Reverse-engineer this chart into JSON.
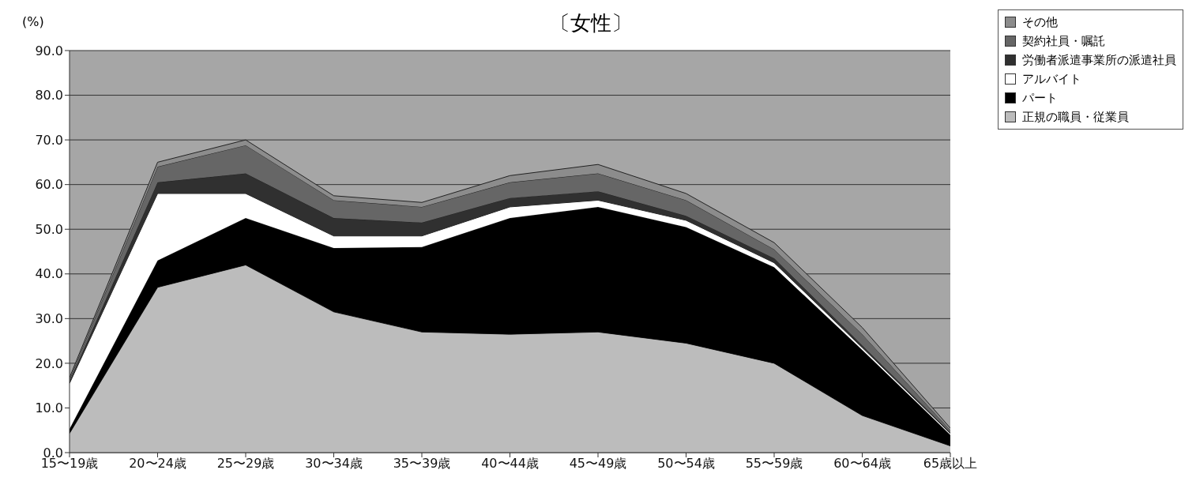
{
  "chart_data": {
    "type": "area",
    "stacked": true,
    "title": "〔女性〕",
    "ylabel": "(%)",
    "categories": [
      "15〜19歳",
      "20〜24歳",
      "25〜29歳",
      "30〜34歳",
      "35〜39歳",
      "40〜44歳",
      "45〜49歳",
      "50〜54歳",
      "55〜59歳",
      "60〜64歳",
      "65歳以上"
    ],
    "series": [
      {
        "name": "正規の職員・従業員",
        "color": "#bcbcbc",
        "values": [
          4.3,
          37,
          42,
          31.5,
          27,
          26.5,
          27,
          24.5,
          20,
          8.3,
          1.5
        ]
      },
      {
        "name": "パート",
        "color": "#000000",
        "values": [
          1.0,
          6,
          10.5,
          14.3,
          19,
          26,
          28,
          26,
          21.5,
          14.7,
          2.5
        ]
      },
      {
        "name": "アルバイト",
        "color": "#ffffff",
        "values": [
          10.2,
          15,
          5.5,
          2.7,
          2.5,
          2.5,
          1.5,
          1.5,
          1,
          0.5,
          0.3
        ]
      },
      {
        "name": "労働者派遣事業所の派遣社員",
        "color": "#303030",
        "values": [
          0.4,
          2.5,
          4.5,
          4,
          3,
          2,
          2,
          1,
          1,
          0.5,
          0.2
        ]
      },
      {
        "name": "契約社員・嘱託",
        "color": "#666666",
        "values": [
          0.5,
          3.5,
          6.3,
          4,
          3.5,
          3.5,
          4,
          3.5,
          2,
          2.5,
          0.5
        ]
      },
      {
        "name": "その他",
        "color": "#8c8c8c",
        "values": [
          0.4,
          1,
          1.2,
          1,
          1,
          1.5,
          2,
          1.5,
          1.5,
          1.5,
          0.5
        ]
      }
    ],
    "ylim": [
      0,
      90
    ],
    "yticks": [
      {
        "value": 0,
        "label": "0.0"
      },
      {
        "value": 10,
        "label": "10.0"
      },
      {
        "value": 20,
        "label": "20.0"
      },
      {
        "value": 30,
        "label": "30.0"
      },
      {
        "value": 40,
        "label": "40.0"
      },
      {
        "value": 50,
        "label": "50.0"
      },
      {
        "value": 60,
        "label": "60.0"
      },
      {
        "value": 70,
        "label": "70.0"
      },
      {
        "value": 80,
        "label": "80.0"
      },
      {
        "value": 90,
        "label": "90.0"
      }
    ],
    "grid": "y",
    "legend": "top right"
  }
}
